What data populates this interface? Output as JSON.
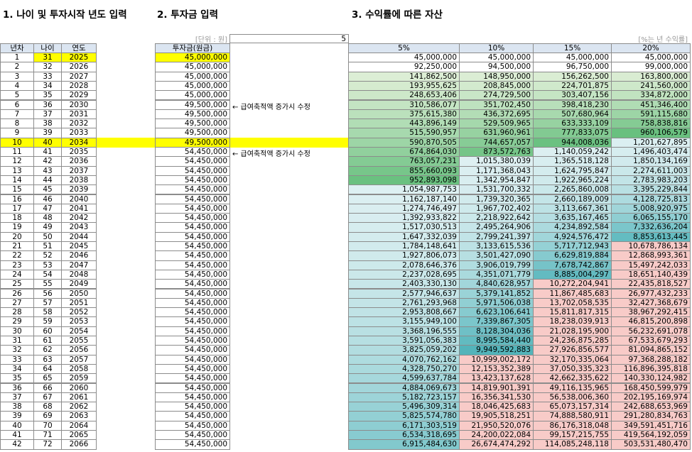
{
  "titles": [
    "1. 나이 및 투자시작 년도 입력",
    "2. 투자금 입력",
    "3. 수익률에 따른 자산"
  ],
  "unit_label": "[단위 : 원]",
  "input_value": "5",
  "rate_note": "[%는 년 수익률]",
  "headers": [
    "년차",
    "나이",
    "연도",
    "투자금(원금)",
    "5%",
    "10%",
    "15%",
    "20%"
  ],
  "rows": [
    [
      "1",
      "31",
      "2025",
      "45,000,000",
      "45,000,000",
      "45,000,000",
      "45,000,000",
      "45,000,000"
    ],
    [
      "2",
      "32",
      "2026",
      "45,000,000",
      "92,250,000",
      "94,500,000",
      "96,750,000",
      "99,000,000"
    ],
    [
      "3",
      "33",
      "2027",
      "45,000,000",
      "141,862,500",
      "148,950,000",
      "156,262,500",
      "163,800,000"
    ],
    [
      "4",
      "34",
      "2028",
      "45,000,000",
      "193,955,625",
      "208,845,000",
      "224,701,875",
      "241,560,000"
    ],
    [
      "5",
      "35",
      "2029",
      "45,000,000",
      "248,653,406",
      "274,729,500",
      "303,407,156",
      "334,872,000"
    ],
    [
      "6",
      "36",
      "2030",
      "49,500,000",
      "310,586,077",
      "351,702,450",
      "398,418,230",
      "451,346,400"
    ],
    [
      "7",
      "37",
      "2031",
      "49,500,000",
      "375,615,380",
      "436,372,695",
      "507,680,964",
      "591,115,680"
    ],
    [
      "8",
      "38",
      "2032",
      "49,500,000",
      "443,896,149",
      "529,509,965",
      "633,333,109",
      "758,838,816"
    ],
    [
      "9",
      "39",
      "2033",
      "49,500,000",
      "515,590,957",
      "631,960,961",
      "777,833,075",
      "960,106,579"
    ],
    [
      "10",
      "40",
      "2034",
      "49,500,000",
      "590,870,505",
      "744,657,057",
      "944,008,036",
      "1,201,627,895"
    ],
    [
      "11",
      "41",
      "2035",
      "54,450,000",
      "674,864,030",
      "873,572,763",
      "1,140,059,242",
      "1,496,403,474"
    ],
    [
      "12",
      "42",
      "2036",
      "54,450,000",
      "763,057,231",
      "1,015,380,039",
      "1,365,518,128",
      "1,850,134,169"
    ],
    [
      "13",
      "43",
      "2037",
      "54,450,000",
      "855,660,093",
      "1,171,368,043",
      "1,624,795,847",
      "2,274,611,003"
    ],
    [
      "14",
      "44",
      "2038",
      "54,450,000",
      "952,893,098",
      "1,342,954,847",
      "1,922,965,224",
      "2,783,983,203"
    ],
    [
      "15",
      "45",
      "2039",
      "54,450,000",
      "1,054,987,753",
      "1,531,700,332",
      "2,265,860,008",
      "3,395,229,844"
    ],
    [
      "16",
      "46",
      "2040",
      "54,450,000",
      "1,162,187,140",
      "1,739,320,365",
      "2,660,189,009",
      "4,128,725,813"
    ],
    [
      "17",
      "47",
      "2041",
      "54,450,000",
      "1,274,746,497",
      "1,967,702,402",
      "3,113,667,361",
      "5,008,920,975"
    ],
    [
      "18",
      "48",
      "2042",
      "54,450,000",
      "1,392,933,822",
      "2,218,922,642",
      "3,635,167,465",
      "6,065,155,170"
    ],
    [
      "19",
      "49",
      "2043",
      "54,450,000",
      "1,517,030,513",
      "2,495,264,906",
      "4,234,892,584",
      "7,332,636,204"
    ],
    [
      "20",
      "50",
      "2044",
      "54,450,000",
      "1,647,332,039",
      "2,799,241,397",
      "4,924,576,472",
      "8,853,613,445"
    ],
    [
      "21",
      "51",
      "2045",
      "54,450,000",
      "1,784,148,641",
      "3,133,615,536",
      "5,717,712,943",
      "10,678,786,134"
    ],
    [
      "22",
      "52",
      "2046",
      "54,450,000",
      "1,927,806,073",
      "3,501,427,090",
      "6,629,819,884",
      "12,868,993,361"
    ],
    [
      "23",
      "53",
      "2047",
      "54,450,000",
      "2,078,646,376",
      "3,906,019,799",
      "7,678,742,867",
      "15,497,242,033"
    ],
    [
      "24",
      "54",
      "2048",
      "54,450,000",
      "2,237,028,695",
      "4,351,071,779",
      "8,885,004,297",
      "18,651,140,439"
    ],
    [
      "25",
      "55",
      "2049",
      "54,450,000",
      "2,403,330,130",
      "4,840,628,957",
      "10,272,204,941",
      "22,435,818,527"
    ],
    [
      "26",
      "56",
      "2050",
      "54,450,000",
      "2,577,946,637",
      "5,379,141,852",
      "11,867,485,683",
      "26,977,432,233"
    ],
    [
      "27",
      "57",
      "2051",
      "54,450,000",
      "2,761,293,968",
      "5,971,506,038",
      "13,702,058,535",
      "32,427,368,679"
    ],
    [
      "28",
      "58",
      "2052",
      "54,450,000",
      "2,953,808,667",
      "6,623,106,641",
      "15,811,817,315",
      "38,967,292,415"
    ],
    [
      "29",
      "59",
      "2053",
      "54,450,000",
      "3,155,949,100",
      "7,339,867,305",
      "18,238,039,913",
      "46,815,200,898"
    ],
    [
      "30",
      "60",
      "2054",
      "54,450,000",
      "3,368,196,555",
      "8,128,304,036",
      "21,028,195,900",
      "56,232,691,078"
    ],
    [
      "31",
      "61",
      "2055",
      "54,450,000",
      "3,591,056,383",
      "8,995,584,440",
      "24,236,875,285",
      "67,533,679,293"
    ],
    [
      "32",
      "62",
      "2056",
      "54,450,000",
      "3,825,059,202",
      "9,949,592,883",
      "27,926,856,577",
      "81,094,865,152"
    ],
    [
      "33",
      "63",
      "2057",
      "54,450,000",
      "4,070,762,162",
      "10,999,002,172",
      "32,170,335,064",
      "97,368,288,182"
    ],
    [
      "34",
      "64",
      "2058",
      "54,450,000",
      "4,328,750,270",
      "12,153,352,389",
      "37,050,335,323",
      "116,896,395,818"
    ],
    [
      "35",
      "65",
      "2059",
      "54,450,000",
      "4,599,637,784",
      "13,423,137,628",
      "42,662,335,622",
      "140,330,124,982"
    ],
    [
      "36",
      "66",
      "2060",
      "54,450,000",
      "4,884,069,673",
      "14,819,901,391",
      "49,116,135,965",
      "168,450,599,979"
    ],
    [
      "37",
      "67",
      "2061",
      "54,450,000",
      "5,182,723,157",
      "16,356,341,530",
      "56,538,006,360",
      "202,195,169,974"
    ],
    [
      "38",
      "68",
      "2062",
      "54,450,000",
      "5,496,309,314",
      "18,046,425,683",
      "65,073,157,314",
      "242,688,653,969"
    ],
    [
      "39",
      "69",
      "2063",
      "54,450,000",
      "5,825,574,780",
      "19,905,518,251",
      "74,888,580,911",
      "291,280,834,763"
    ],
    [
      "40",
      "70",
      "2064",
      "54,450,000",
      "6,171,303,519",
      "21,950,520,076",
      "86,176,318,048",
      "349,591,451,716"
    ],
    [
      "41",
      "71",
      "2065",
      "54,450,000",
      "6,534,318,695",
      "24,200,022,084",
      "99,157,215,755",
      "419,564,192,059"
    ],
    [
      "42",
      "72",
      "2066",
      "54,450,000",
      "6,915,484,630",
      "26,674,474,292",
      "114,085,248,118",
      "503,531,480,470"
    ]
  ],
  "notes": [
    null,
    null,
    null,
    null,
    null,
    "← 급여축적액 증가시 수정",
    null,
    null,
    null,
    null,
    "← 급여축적액 증가시 수정",
    null,
    null,
    null,
    null,
    null,
    null,
    null,
    null,
    null,
    null,
    null,
    null,
    null,
    null,
    null,
    null,
    null,
    null,
    null,
    null,
    null,
    null,
    null,
    null,
    null,
    null,
    null,
    null,
    null,
    null,
    null
  ]
}
